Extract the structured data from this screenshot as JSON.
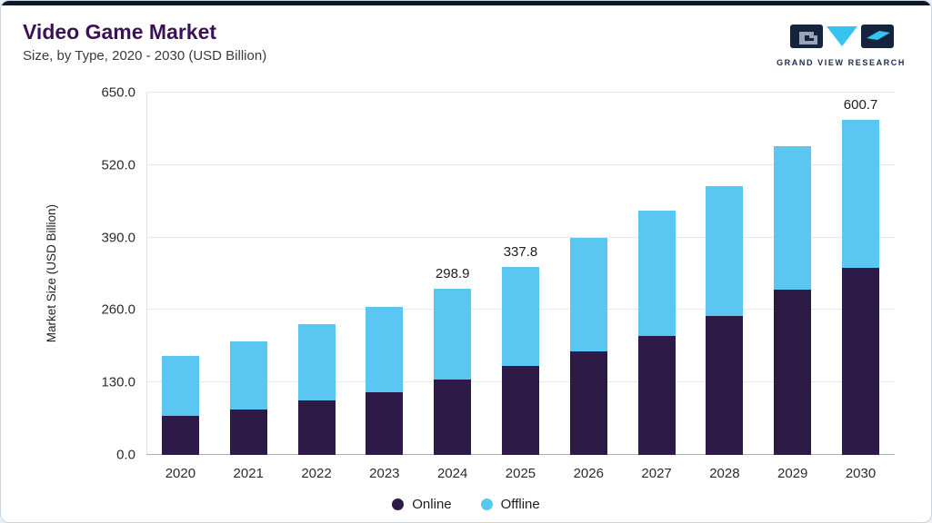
{
  "header": {
    "title": "Video Game Market",
    "subtitle": "Size, by Type, 2020 - 2030 (USD Billion)"
  },
  "logo": {
    "text": "GRAND VIEW RESEARCH",
    "colors": {
      "dark": "#16233f",
      "cyan": "#35c4f0"
    }
  },
  "chart_data": {
    "type": "bar",
    "stacked": true,
    "title": "Video Game Market Size, by Type, 2020 - 2030 (USD Billion)",
    "categories": [
      "2020",
      "2021",
      "2022",
      "2023",
      "2024",
      "2025",
      "2026",
      "2027",
      "2028",
      "2029",
      "2030"
    ],
    "series": [
      {
        "name": "Online",
        "color": "#2e1a47",
        "values": [
          70,
          82,
          97,
          113,
          136,
          160,
          186,
          213,
          250,
          297,
          335
        ]
      },
      {
        "name": "Offline",
        "color": "#5ac7f2",
        "values": [
          107,
          122,
          137,
          152,
          162.9,
          177.8,
          204,
          225,
          232,
          257,
          265.7
        ]
      }
    ],
    "totals": [
      177,
      204,
      234,
      265,
      298.9,
      337.8,
      390,
      438,
      482,
      554,
      600.7
    ],
    "total_labels": [
      "",
      "",
      "",
      "",
      "298.9",
      "337.8",
      "",
      "",
      "",
      "",
      "600.7"
    ],
    "ylabel": "Market Size (USD Billion)",
    "yticks": [
      0,
      130,
      260,
      390,
      520,
      650
    ],
    "ylim": [
      0,
      650
    ],
    "grid": true,
    "legend_position": "bottom"
  }
}
